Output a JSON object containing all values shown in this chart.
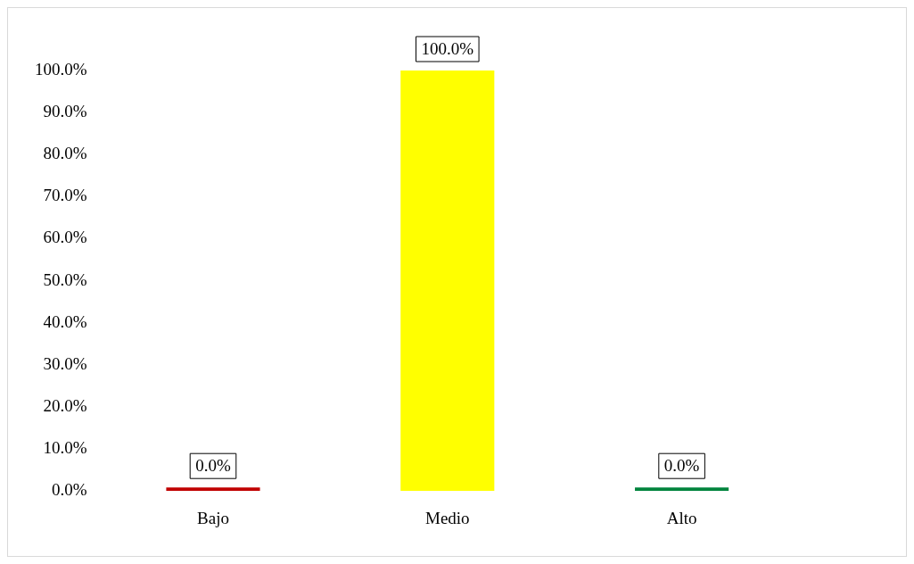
{
  "chart_data": {
    "type": "bar",
    "categories": [
      "Bajo",
      "Medio",
      "Alto"
    ],
    "values": [
      0,
      100,
      0
    ],
    "colors": [
      "#c00000",
      "#ffff00",
      "#00843d"
    ],
    "value_labels": [
      "0.0%",
      "100.0%",
      "0.0%"
    ],
    "ylim": [
      0,
      100
    ],
    "yticks": [
      {
        "value": 0,
        "label": "0.0%"
      },
      {
        "value": 10,
        "label": "10.0%"
      },
      {
        "value": 20,
        "label": "20.0%"
      },
      {
        "value": 30,
        "label": "30.0%"
      },
      {
        "value": 40,
        "label": "40.0%"
      },
      {
        "value": 50,
        "label": "50.0%"
      },
      {
        "value": 60,
        "label": "60.0%"
      },
      {
        "value": 70,
        "label": "70.0%"
      },
      {
        "value": 80,
        "label": "80.0%"
      },
      {
        "value": 90,
        "label": "90.0%"
      },
      {
        "value": 100,
        "label": "100.0%"
      }
    ],
    "grid": false,
    "legend": false
  }
}
